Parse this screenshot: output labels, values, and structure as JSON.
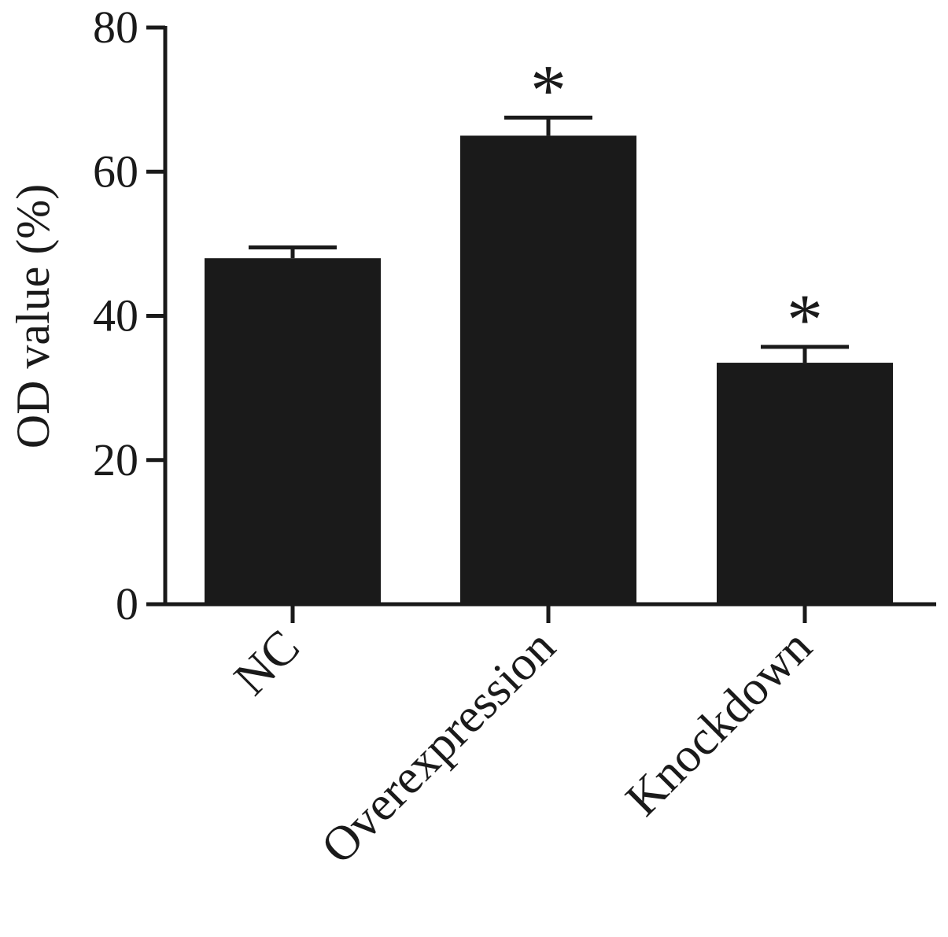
{
  "chart_data": {
    "type": "bar",
    "title": "",
    "xlabel": "",
    "ylabel": "OD value (%)",
    "ylim": [
      0,
      80
    ],
    "yticks": [
      0,
      20,
      40,
      60,
      80
    ],
    "categories": [
      "NC",
      "Overexpression",
      "Knockdown"
    ],
    "series": [
      {
        "values": [
          48,
          65,
          33.5
        ],
        "errors": [
          1.5,
          2.5,
          2.2
        ],
        "annotations": [
          "",
          "*",
          "*"
        ]
      }
    ],
    "grid": false,
    "legend": "none"
  },
  "colors": {
    "bar": "#1a1a1a",
    "axis": "#1a1a1a",
    "background": "#ffffff"
  }
}
